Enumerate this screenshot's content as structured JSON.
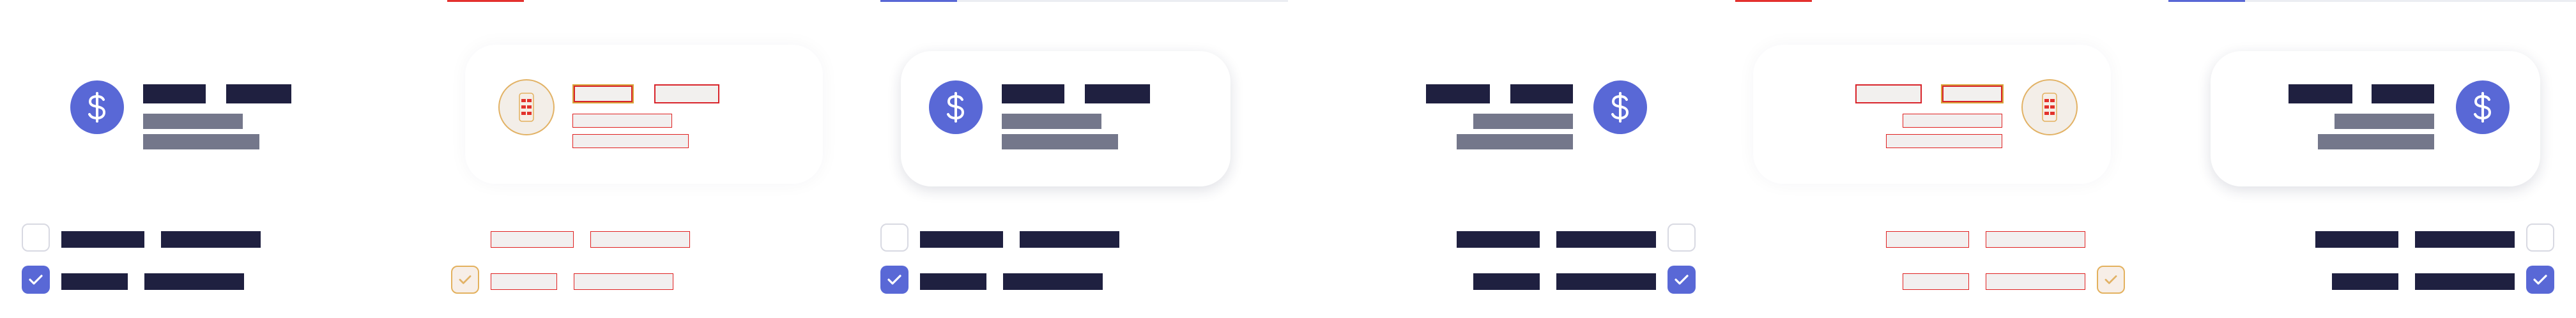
{
  "colors": {
    "accent": "#5968d6",
    "text_placeholder_dark": "#1f2040",
    "text_placeholder_mid": "#74778b",
    "outline_red": "#e02020",
    "outline_gold": "#e2b265",
    "divider": "#ebedf2"
  },
  "icons": {
    "dollar": "dollar-sign-icon",
    "receipt": "receipt-list-icon",
    "check": "checkmark-icon"
  },
  "panels": [
    {
      "variant": "default",
      "direction": "ltr",
      "checkbox_states": [
        "unchecked",
        "checked"
      ]
    },
    {
      "variant": "wireframe-debug",
      "direction": "ltr",
      "checkbox_states": [
        "hidden",
        "checked"
      ]
    },
    {
      "variant": "card-elevated",
      "direction": "ltr",
      "checkbox_states": [
        "unchecked",
        "checked"
      ]
    },
    {
      "variant": "default",
      "direction": "rtl",
      "checkbox_states": [
        "unchecked",
        "checked"
      ]
    },
    {
      "variant": "wireframe-debug",
      "direction": "rtl",
      "checkbox_states": [
        "hidden",
        "checked"
      ]
    },
    {
      "variant": "card-elevated",
      "direction": "rtl",
      "checkbox_states": [
        "unchecked",
        "checked"
      ]
    }
  ]
}
